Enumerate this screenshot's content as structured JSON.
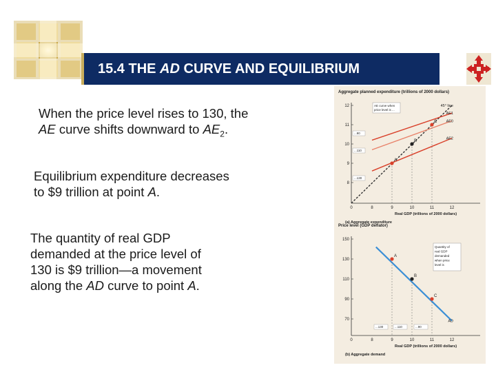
{
  "slide": {
    "title": {
      "prefix": "15.4 THE ",
      "italic": "AD",
      "suffix": " CURVE AND EQUILIBRIUM"
    },
    "paragraphs": {
      "p1": {
        "t1": "When the price level rises to 130, the",
        "t2": "AE",
        "t3": " curve shifts downward to ",
        "t4": "AE",
        "t5": "2",
        "t6": "."
      },
      "p2": {
        "t1": "Equilibrium expenditure decreases",
        "t2": "to $9 trillion at point ",
        "t3": "A",
        "t4": "."
      },
      "p3": {
        "t1": "The quantity of real GDP",
        "t2": "demanded at the price level of",
        "t3": "130 is $9 trillion—a movement",
        "t4": "along the ",
        "t5": "AD",
        "t6": " curve to point ",
        "t7": "A",
        "t8": "."
      }
    }
  },
  "colors": {
    "title_bar": "#0e2b63",
    "accent_red": "#d9412b",
    "ad_blue": "#3b8fd6",
    "figure_bg": "#f4ede1"
  },
  "icons": {
    "decoration": "gold-glow-squares-icon",
    "nav": "red-move-cross-icon"
  },
  "chart_data": [
    {
      "type": "line",
      "title": "(a) Aggregate expenditure",
      "ylabel": "Aggregate planned expenditure (trillions of 2000 dollars)",
      "xlabel": "Real GDP (trillions of 2000 dollars)",
      "xlim": [
        0,
        12
      ],
      "ylim": [
        0,
        12
      ],
      "xticks": [
        "0",
        "8",
        "9",
        "10",
        "11",
        "12"
      ],
      "yticks": [
        "8",
        "9",
        "10",
        "11",
        "12"
      ],
      "series": [
        {
          "name": "45° line",
          "x": [
            0,
            12
          ],
          "y": [
            0,
            12
          ],
          "color": "#333333"
        },
        {
          "name": "AE1",
          "x": [
            8,
            12
          ],
          "y": [
            10.2,
            11.6
          ],
          "color": "#d9412b"
        },
        {
          "name": "AE0",
          "x": [
            8,
            12
          ],
          "y": [
            9.7,
            11.2
          ],
          "color": "#e8826a"
        },
        {
          "name": "AE2",
          "x": [
            8,
            12
          ],
          "y": [
            8.6,
            10.3
          ],
          "color": "#d9412b"
        }
      ],
      "points": [
        {
          "label": "C",
          "x": 11,
          "y": 11
        },
        {
          "label": "B",
          "x": 10,
          "y": 10
        },
        {
          "label": "A",
          "x": 9,
          "y": 9
        }
      ],
      "annotations": {
        "callout": [
          "AE curve when",
          "price level is ..."
        ],
        "tags": [
          "...90",
          "...110",
          "...130"
        ]
      }
    },
    {
      "type": "line",
      "title": "(b) Aggregate demand",
      "ylabel": "Price level (GDP deflator)",
      "xlabel": "Real GDP (trillions of 2000 dollars)",
      "xlim": [
        0,
        12
      ],
      "ylim": [
        0,
        150
      ],
      "xticks": [
        "0",
        "8",
        "9",
        "10",
        "11",
        "12"
      ],
      "yticks": [
        "70",
        "90",
        "110",
        "130",
        "150"
      ],
      "series": [
        {
          "name": "AD",
          "x": [
            8.2,
            12
          ],
          "y": [
            142,
            62
          ],
          "color": "#3b8fd6"
        }
      ],
      "points": [
        {
          "label": "A",
          "x": 9,
          "y": 130
        },
        {
          "label": "B",
          "x": 10,
          "y": 110
        },
        {
          "label": "C",
          "x": 11,
          "y": 90
        }
      ],
      "annotations": {
        "callout": [
          "Quantity of",
          "real GDP",
          "demanded",
          "when price",
          "level is"
        ],
        "tags": [
          "...130",
          "...110",
          "...90"
        ]
      }
    }
  ]
}
